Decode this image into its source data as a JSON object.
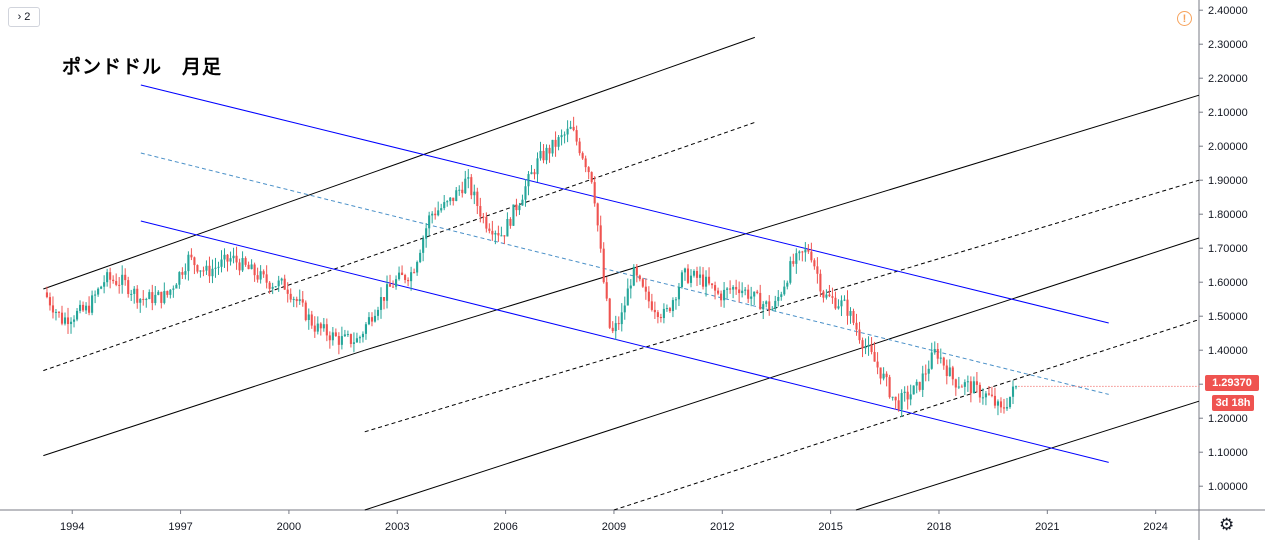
{
  "toolbar": {
    "collapse_count": "2"
  },
  "title": "ポンドドル　月足",
  "price_label": "1.29370",
  "countdown_label": "3d 18h",
  "icons": {
    "collapse": "chevron-right-icon",
    "alert": "alert-icon",
    "settings": "gear-icon"
  },
  "colors": {
    "up": "#26a69a",
    "down": "#ef5350",
    "channel": "#0000ff",
    "midline": "#4a90c8",
    "trend": "#000000"
  },
  "chart_data": {
    "type": "candlestick",
    "title": "ポンドドル　月足",
    "y_axis": {
      "position": "right",
      "ylim": [
        0.93,
        2.43
      ],
      "ticks": [
        "2.40000",
        "2.30000",
        "2.20000",
        "2.10000",
        "2.00000",
        "1.90000",
        "1.80000",
        "1.70000",
        "1.60000",
        "1.50000",
        "1.40000",
        "1.30000",
        "1.20000",
        "1.10000",
        "1.00000"
      ]
    },
    "x_axis": {
      "xlim": [
        1992.0,
        2025.2
      ],
      "ticks": [
        "1994",
        "1997",
        "2000",
        "2003",
        "2006",
        "2009",
        "2012",
        "2015",
        "2018",
        "2021",
        "2024"
      ]
    },
    "price_path": [
      [
        1993.3,
        1.57
      ],
      [
        1993.8,
        1.49
      ],
      [
        1994.5,
        1.52
      ],
      [
        1995.0,
        1.61
      ],
      [
        1995.5,
        1.6
      ],
      [
        1996.0,
        1.55
      ],
      [
        1996.7,
        1.56
      ],
      [
        1997.3,
        1.67
      ],
      [
        1997.8,
        1.63
      ],
      [
        1998.5,
        1.67
      ],
      [
        1999.5,
        1.6
      ],
      [
        2000.0,
        1.59
      ],
      [
        2000.8,
        1.47
      ],
      [
        2001.5,
        1.43
      ],
      [
        2002.0,
        1.43
      ],
      [
        2002.5,
        1.53
      ],
      [
        2003.0,
        1.6
      ],
      [
        2003.5,
        1.63
      ],
      [
        2004.0,
        1.8
      ],
      [
        2004.5,
        1.83
      ],
      [
        2005.0,
        1.9
      ],
      [
        2005.5,
        1.78
      ],
      [
        2006.0,
        1.74
      ],
      [
        2006.5,
        1.85
      ],
      [
        2007.0,
        1.96
      ],
      [
        2007.5,
        2.01
      ],
      [
        2007.9,
        2.05
      ],
      [
        2008.2,
        1.98
      ],
      [
        2008.5,
        1.9
      ],
      [
        2008.8,
        1.6
      ],
      [
        2009.0,
        1.44
      ],
      [
        2009.3,
        1.5
      ],
      [
        2009.6,
        1.63
      ],
      [
        2010.0,
        1.55
      ],
      [
        2010.5,
        1.5
      ],
      [
        2011.0,
        1.62
      ],
      [
        2011.5,
        1.61
      ],
      [
        2012.0,
        1.56
      ],
      [
        2012.5,
        1.59
      ],
      [
        2013.0,
        1.55
      ],
      [
        2013.5,
        1.52
      ],
      [
        2014.0,
        1.65
      ],
      [
        2014.5,
        1.7
      ],
      [
        2014.9,
        1.56
      ],
      [
        2015.5,
        1.53
      ],
      [
        2016.0,
        1.42
      ],
      [
        2016.5,
        1.33
      ],
      [
        2016.9,
        1.24
      ],
      [
        2017.5,
        1.29
      ],
      [
        2018.0,
        1.4
      ],
      [
        2018.5,
        1.31
      ],
      [
        2019.0,
        1.29
      ],
      [
        2019.5,
        1.26
      ],
      [
        2019.8,
        1.22
      ],
      [
        2020.2,
        1.29
      ]
    ],
    "lines": [
      {
        "style": "solid",
        "color": "#000000",
        "from": [
          1993.2,
          1.58
        ],
        "to": [
          2012.9,
          2.32
        ]
      },
      {
        "style": "dashed",
        "color": "#000000",
        "from": [
          1993.2,
          1.34
        ],
        "to": [
          2012.9,
          2.07
        ]
      },
      {
        "style": "solid",
        "color": "#000000",
        "from": [
          1993.2,
          1.09
        ],
        "to": [
          2002.1,
          1.4
        ]
      },
      {
        "style": "solid",
        "color": "#000000",
        "from": [
          2002.1,
          1.4
        ],
        "to": [
          2025.2,
          2.15
        ]
      },
      {
        "style": "dashed",
        "color": "#000000",
        "from": [
          2002.1,
          1.16
        ],
        "to": [
          2025.2,
          1.9
        ]
      },
      {
        "style": "solid",
        "color": "#000000",
        "from": [
          2002.1,
          0.93
        ],
        "to": [
          2025.2,
          1.73
        ]
      },
      {
        "style": "dashed",
        "color": "#000000",
        "from": [
          2009.0,
          0.93
        ],
        "to": [
          2025.2,
          1.49
        ]
      },
      {
        "style": "solid",
        "color": "#000000",
        "from": [
          2015.7,
          0.93
        ],
        "to": [
          2025.2,
          1.25
        ]
      },
      {
        "style": "solid",
        "color": "#0000ff",
        "from": [
          1995.9,
          2.18
        ],
        "to": [
          2022.7,
          1.48
        ]
      },
      {
        "style": "dashed",
        "color": "#4a90c8",
        "from": [
          1995.9,
          1.98
        ],
        "to": [
          2022.7,
          1.27
        ]
      },
      {
        "style": "solid",
        "color": "#0000ff",
        "from": [
          1995.9,
          1.78
        ],
        "to": [
          2022.7,
          1.07
        ]
      }
    ]
  }
}
